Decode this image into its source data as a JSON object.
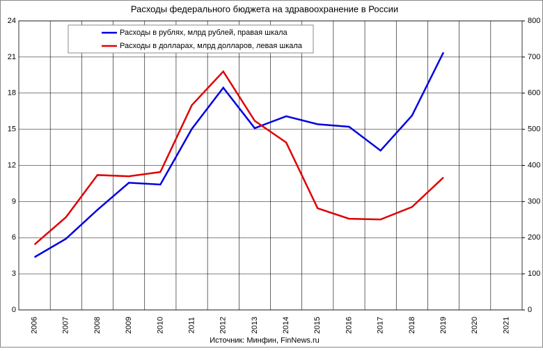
{
  "chart_data": {
    "type": "line",
    "title": "Расходы федерального бюджета на здравоохранение в России",
    "source": "Источник: Минфин, FinNews.ru",
    "categories": [
      "2006",
      "2007",
      "2008",
      "2009",
      "2010",
      "2011",
      "2012",
      "2013",
      "2014",
      "2015",
      "2016",
      "2017",
      "2018",
      "2019",
      "2020",
      "2021"
    ],
    "series": [
      {
        "name": "Расходы в рублях, млрд рублей, правая шкала",
        "color": "#0000e0",
        "axis": "y2",
        "values": [
          146,
          197,
          277,
          352,
          347,
          501,
          615,
          503,
          536,
          514,
          507,
          441,
          538,
          713,
          null,
          null
        ]
      },
      {
        "name": "Расходы в долларах, млрд долларов, левая шкала",
        "color": "#e00000",
        "axis": "y",
        "values": [
          5.43,
          7.7,
          11.2,
          11.1,
          11.45,
          17.0,
          19.8,
          15.7,
          13.9,
          8.44,
          7.57,
          7.51,
          8.55,
          11.0,
          null,
          null
        ]
      }
    ],
    "ylim": [
      0,
      24
    ],
    "yticks": [
      0,
      3,
      6,
      9,
      12,
      15,
      18,
      21,
      24
    ],
    "y2lim": [
      0,
      800
    ],
    "y2ticks": [
      0,
      100,
      200,
      300,
      400,
      500,
      600,
      700,
      800
    ],
    "grid": true,
    "legend": "top-left"
  }
}
